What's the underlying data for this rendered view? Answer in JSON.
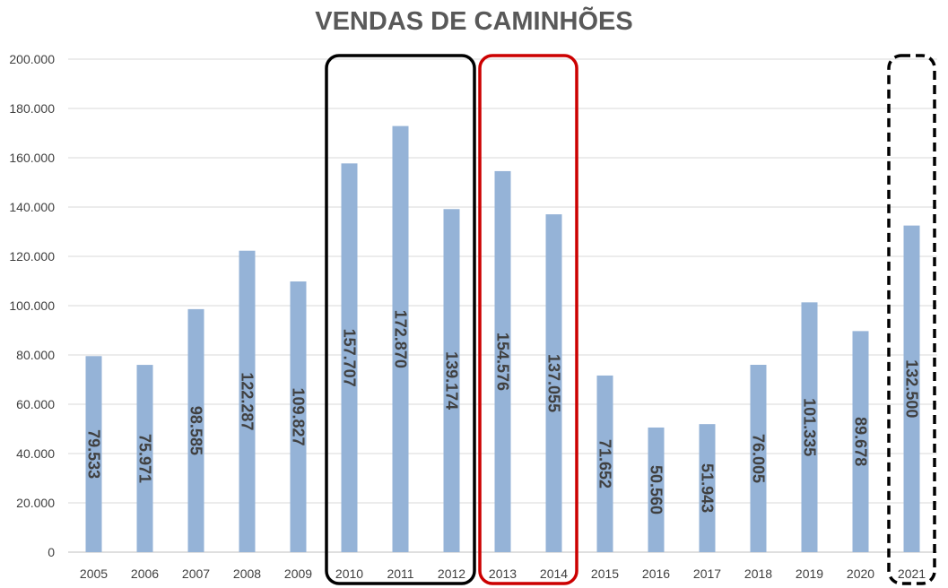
{
  "chart_data": {
    "type": "bar",
    "title": "VENDAS DE CAMINHÕES",
    "xlabel": "",
    "ylabel": "",
    "ylim": [
      0,
      200000
    ],
    "yticks": [
      0,
      20000,
      40000,
      60000,
      80000,
      100000,
      120000,
      140000,
      160000,
      180000,
      200000
    ],
    "ytick_labels": [
      "0",
      "20.000",
      "40.000",
      "60.000",
      "80.000",
      "100.000",
      "120.000",
      "140.000",
      "160.000",
      "180.000",
      "200.000"
    ],
    "categories": [
      "2005",
      "2006",
      "2007",
      "2008",
      "2009",
      "2010",
      "2011",
      "2012",
      "2013",
      "2014",
      "2015",
      "2016",
      "2017",
      "2018",
      "2019",
      "2020",
      "2021"
    ],
    "values": [
      79533,
      75971,
      98585,
      122287,
      109827,
      157707,
      172870,
      139174,
      154576,
      137055,
      71652,
      50560,
      51943,
      76005,
      101335,
      89678,
      132500
    ],
    "value_labels": [
      "79.533",
      "75.971",
      "98.585",
      "122.287",
      "109.827",
      "157.707",
      "172.870",
      "139.174",
      "154.576",
      "137.055",
      "71.652",
      "50.560",
      "51.943",
      "76.005",
      "101.335",
      "89.678",
      "132.500"
    ],
    "bar_color": "#95B3D7",
    "grid": true,
    "legend": "none",
    "highlight_boxes": [
      {
        "from": "2010",
        "to": "2012",
        "color": "#000000",
        "style": "solid"
      },
      {
        "from": "2013",
        "to": "2014",
        "color": "#CC0000",
        "style": "solid"
      },
      {
        "from": "2021",
        "to": "2021",
        "color": "#000000",
        "style": "dashed"
      }
    ]
  }
}
